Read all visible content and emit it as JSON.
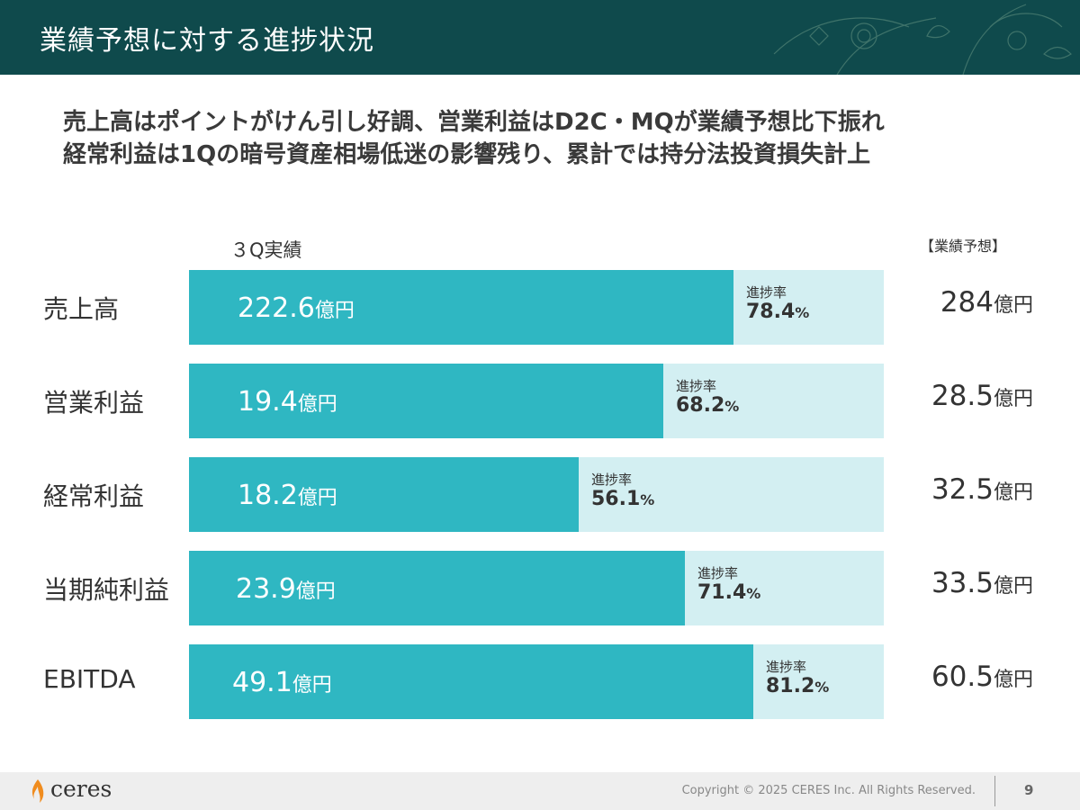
{
  "header": {
    "title": "業績予想に対する進捗状況"
  },
  "subtitle": {
    "line1": "売上高はポイントがけん引し好調、営業利益はD2C・MQが業績予想比下振れ",
    "line2": "経常利益は1Qの暗号資産相場低迷の影響残り、累計では持分法投資損失計上"
  },
  "colors": {
    "header_bg": "#0f4a4c",
    "bar_fill": "#2fb7c2",
    "bar_bg": "#d3eff2"
  },
  "chart_data": {
    "type": "bar",
    "orientation": "horizontal",
    "actual_header": "３Q実績",
    "forecast_header": "【業績予想】",
    "rate_label": "進捗率",
    "unit": "億円",
    "percent_sign": "%",
    "categories": [
      "売上高",
      "営業利益",
      "経常利益",
      "当期純利益",
      "EBITDA"
    ],
    "actual_values": [
      "222.6",
      "19.4",
      "18.2",
      "23.9",
      "49.1"
    ],
    "forecast_values": [
      "284",
      "28.5",
      "32.5",
      "33.5",
      "60.5"
    ],
    "progress_rates": [
      "78.4",
      "68.2",
      "56.1",
      "71.4",
      "81.2"
    ],
    "xlim": [
      0,
      100
    ]
  },
  "footer": {
    "logo_text": "ceres",
    "copyright": "Copyright © 2025 CERES Inc. All Rights Reserved.",
    "page_number": "9"
  }
}
